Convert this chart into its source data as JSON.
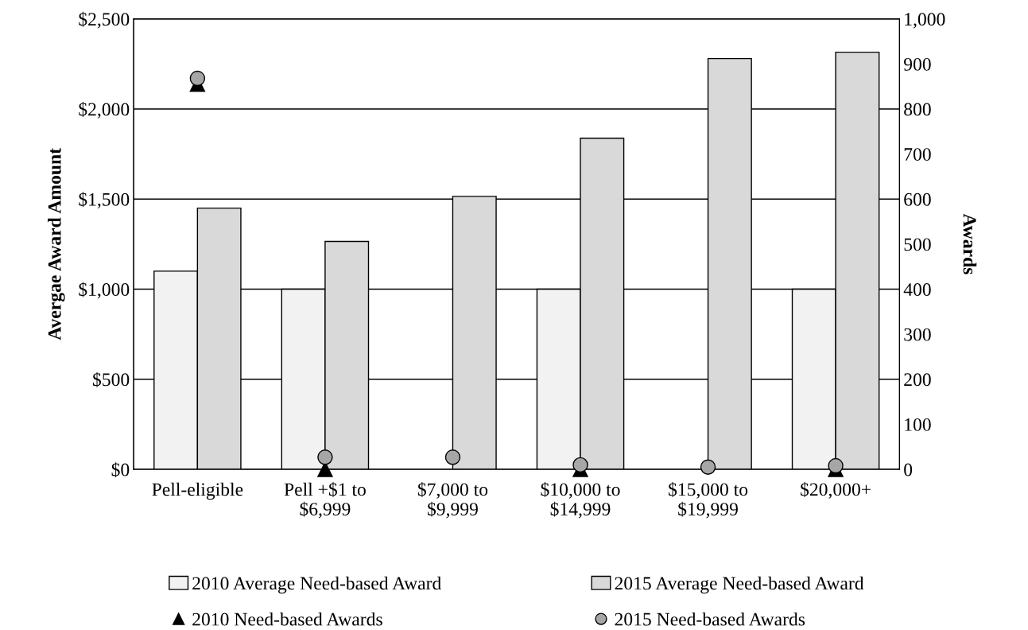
{
  "chart_data": {
    "type": "bar",
    "ylabel": "Avergae Award Amount",
    "y2label": "Awards",
    "categories": [
      "Pell-eligible",
      "Pell +$1 to\n$6,999",
      "$7,000 to\n$9,999",
      "$10,000 to\n$14,999",
      "$15,000 to\n$19,999",
      "$20,000+"
    ],
    "series": [
      {
        "name": "2010 Average Need-based Award",
        "color": "#f2f2f2",
        "values": [
          1100,
          1000,
          null,
          1000,
          null,
          1000
        ]
      },
      {
        "name": "2015 Average Need-based Award",
        "color": "#d9d9d9",
        "values": [
          1450,
          1265,
          1515,
          1838,
          2280,
          2315
        ]
      },
      {
        "name": "2010 Need-based Awards",
        "type": "scatter",
        "axis": "y2",
        "marker": "triangle",
        "color": "#000000",
        "values": [
          855,
          0,
          null,
          0,
          null,
          0
        ]
      },
      {
        "name": "2015 Need-based Awards",
        "type": "scatter",
        "axis": "y2",
        "marker": "circle",
        "color": "#a6a6a6",
        "values": [
          868,
          27,
          27,
          10,
          5,
          8
        ]
      }
    ],
    "ylim": [
      0,
      2500
    ],
    "yticks": [
      {
        "value": 0,
        "label": "$0"
      },
      {
        "value": 500,
        "label": "$500"
      },
      {
        "value": 1000,
        "label": "$1,000"
      },
      {
        "value": 1500,
        "label": "$1,500"
      },
      {
        "value": 2000,
        "label": "$2,000"
      },
      {
        "value": 2500,
        "label": "$2,500"
      }
    ],
    "y2lim": [
      0,
      1000
    ],
    "y2ticks": [
      0,
      100,
      200,
      300,
      400,
      500,
      600,
      700,
      800,
      900,
      {
        "value": 1000,
        "label": "1,000"
      }
    ],
    "grid": "y",
    "legend": "bottom"
  }
}
